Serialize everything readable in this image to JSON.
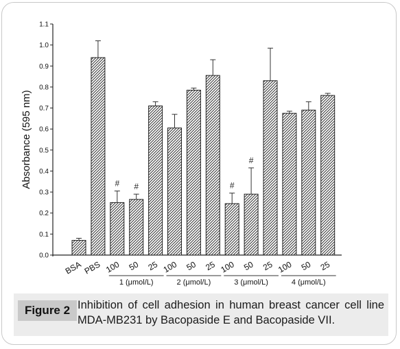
{
  "chart_data": {
    "type": "bar",
    "ylabel": "Absorbance (595 nm)",
    "ylim": [
      0,
      1.1
    ],
    "yticks": [
      "0.0",
      "0.1",
      "0.2",
      "0.3",
      "0.4",
      "0.5",
      "0.6",
      "0.7",
      "0.8",
      "0.9",
      "1.0",
      "1.1"
    ],
    "categories": [
      "BSA",
      "PBS",
      "100",
      "50",
      "25",
      "100",
      "50",
      "25",
      "100",
      "50",
      "25",
      "100",
      "50",
      "25"
    ],
    "values": [
      0.07,
      0.94,
      0.25,
      0.265,
      0.71,
      0.605,
      0.785,
      0.855,
      0.245,
      0.29,
      0.83,
      0.675,
      0.69,
      0.76
    ],
    "errors": [
      0.01,
      0.08,
      0.055,
      0.025,
      0.02,
      0.065,
      0.01,
      0.075,
      0.05,
      0.125,
      0.155,
      0.01,
      0.04,
      0.01
    ],
    "markers": [
      "",
      "",
      "#",
      "#",
      "",
      "",
      "",
      "",
      "#",
      "#",
      "",
      "",
      "",
      ""
    ],
    "groups": [
      {
        "label": "1 (μmol/L)",
        "from": 2,
        "to": 4
      },
      {
        "label": "2 (μmol/L)",
        "from": 5,
        "to": 7
      },
      {
        "label": "3 (μmol/L)",
        "from": 8,
        "to": 10
      },
      {
        "label": "4 (μmol/L)",
        "from": 11,
        "to": 13
      }
    ],
    "grid": false,
    "fill": "diagonal-hatch"
  },
  "caption": {
    "label": "Figure 2",
    "text": "Inhibition of cell adhesion in human breast cancer cell line MDA-MB231 by Bacopaside E and Bacopaside VII."
  }
}
